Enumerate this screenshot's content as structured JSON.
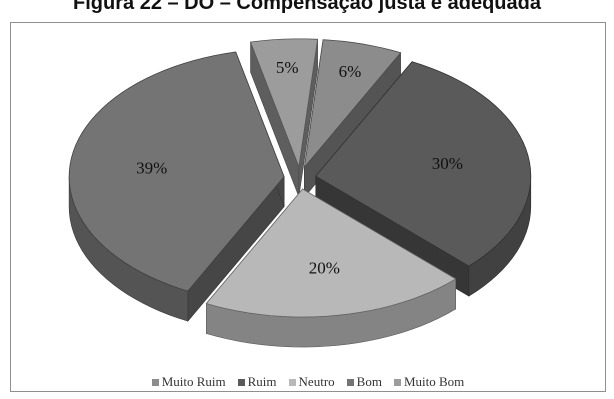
{
  "caption": "Figura 22 – DO – Compensação justa e adequada",
  "chart_data": {
    "type": "pie",
    "categories": [
      "Muito Ruim",
      "Ruim",
      "Neutro",
      "Bom",
      "Muito Bom"
    ],
    "values": [
      6,
      30,
      20,
      39,
      5
    ],
    "labels": [
      "6%",
      "30%",
      "20%",
      "39%",
      "5%"
    ],
    "colors": [
      "#8c8c8c",
      "#5a5a5a",
      "#b8b8b8",
      "#747474",
      "#9c9c9c"
    ],
    "style": "3d exploded pie",
    "legend_position": "bottom"
  }
}
